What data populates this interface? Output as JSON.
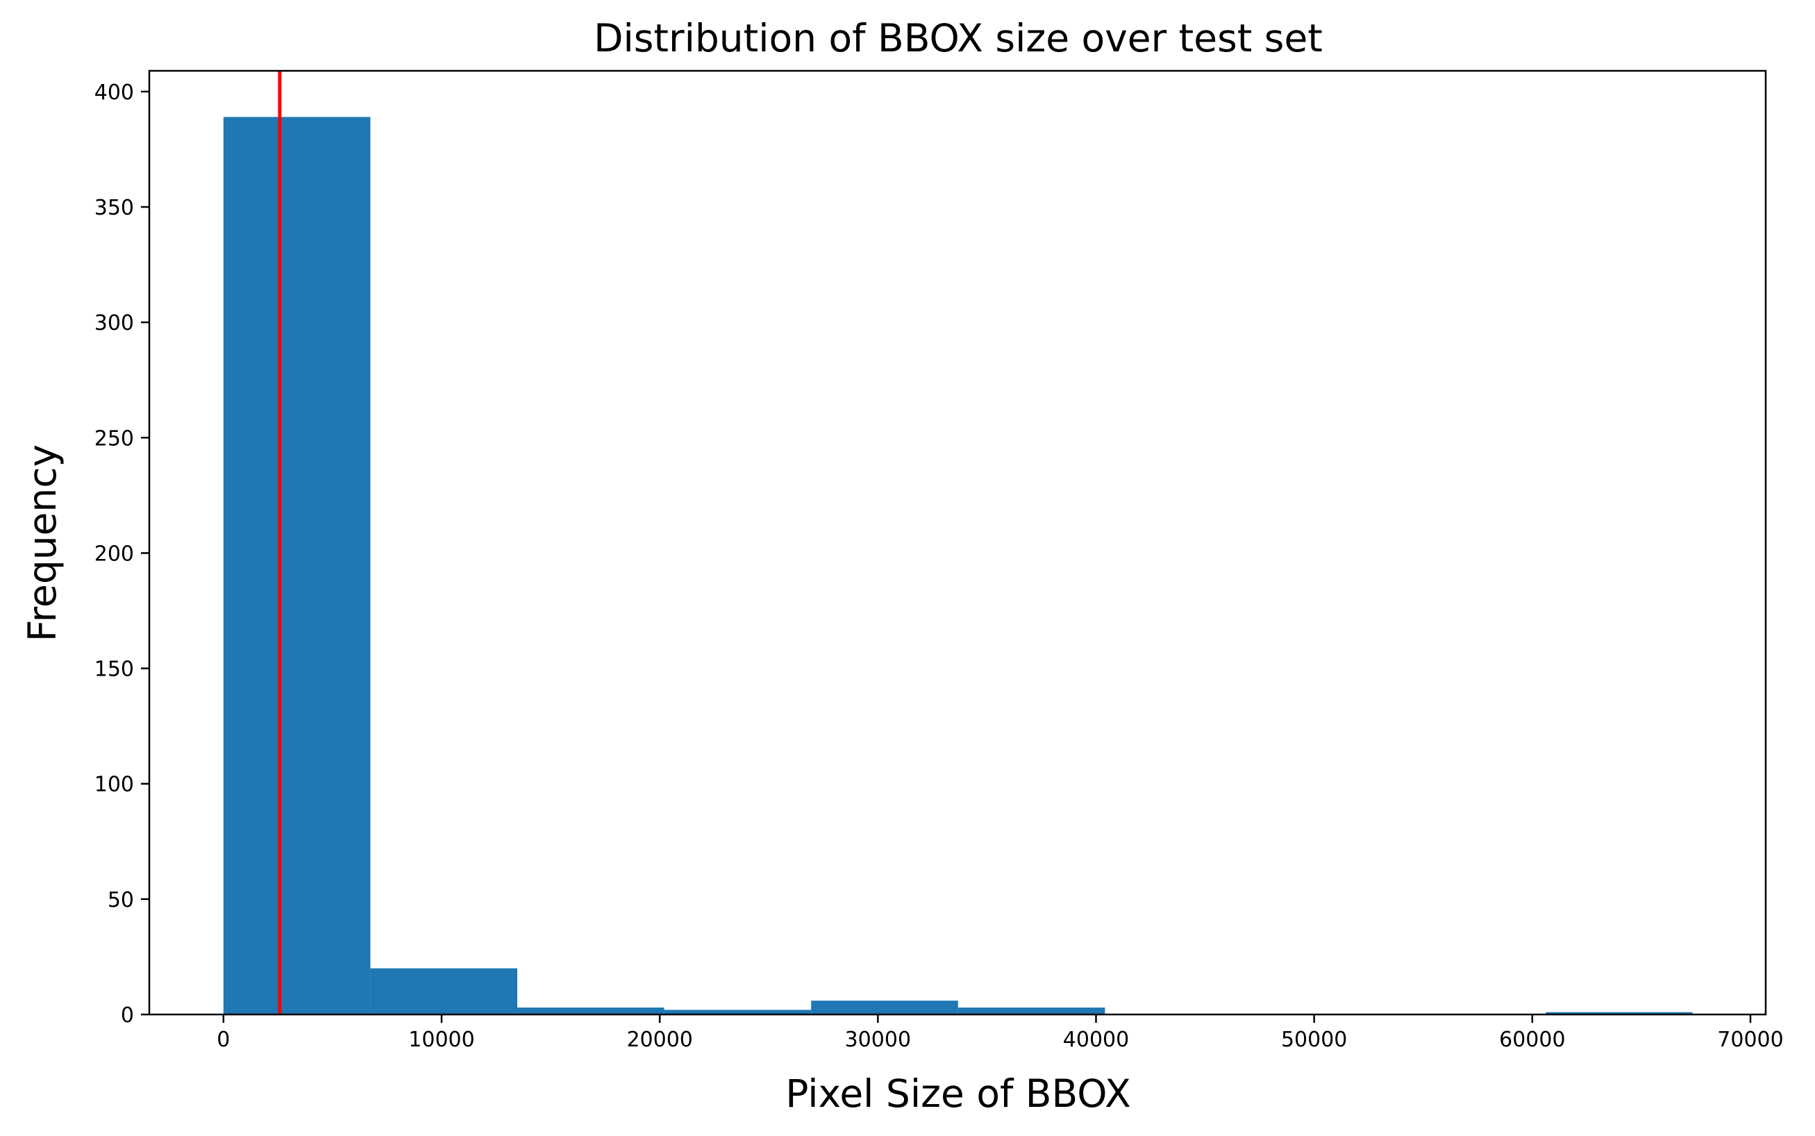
{
  "chart_data": {
    "type": "bar",
    "title": "Distribution of BBOX size over test set",
    "xlabel": "Pixel Size of BBOX",
    "ylabel": "Frequency",
    "xlim": [
      -3400,
      70700
    ],
    "ylim": [
      0,
      409
    ],
    "xticks": [
      0,
      10000,
      20000,
      30000,
      40000,
      50000,
      60000,
      70000
    ],
    "xtick_labels": [
      "0",
      "10000",
      "20000",
      "30000",
      "40000",
      "50000",
      "60000",
      "70000"
    ],
    "yticks": [
      0,
      50,
      100,
      150,
      200,
      250,
      300,
      350,
      400
    ],
    "ytick_labels": [
      "0",
      "50",
      "100",
      "150",
      "200",
      "250",
      "300",
      "350",
      "400"
    ],
    "bins": [
      {
        "x0": 0,
        "x1": 6735,
        "count": 389
      },
      {
        "x0": 6735,
        "x1": 13470,
        "count": 20
      },
      {
        "x0": 13470,
        "x1": 20205,
        "count": 3
      },
      {
        "x0": 20205,
        "x1": 26940,
        "count": 2
      },
      {
        "x0": 26940,
        "x1": 33675,
        "count": 6
      },
      {
        "x0": 33675,
        "x1": 40410,
        "count": 3
      },
      {
        "x0": 40410,
        "x1": 47145,
        "count": 0
      },
      {
        "x0": 47145,
        "x1": 53880,
        "count": 0
      },
      {
        "x0": 53880,
        "x1": 60615,
        "count": 0
      },
      {
        "x0": 60615,
        "x1": 67350,
        "count": 1
      }
    ],
    "vline": {
      "x": 2580,
      "color": "#ff0000"
    },
    "bar_color": "#1f77b4",
    "grid": false,
    "legend": false
  }
}
